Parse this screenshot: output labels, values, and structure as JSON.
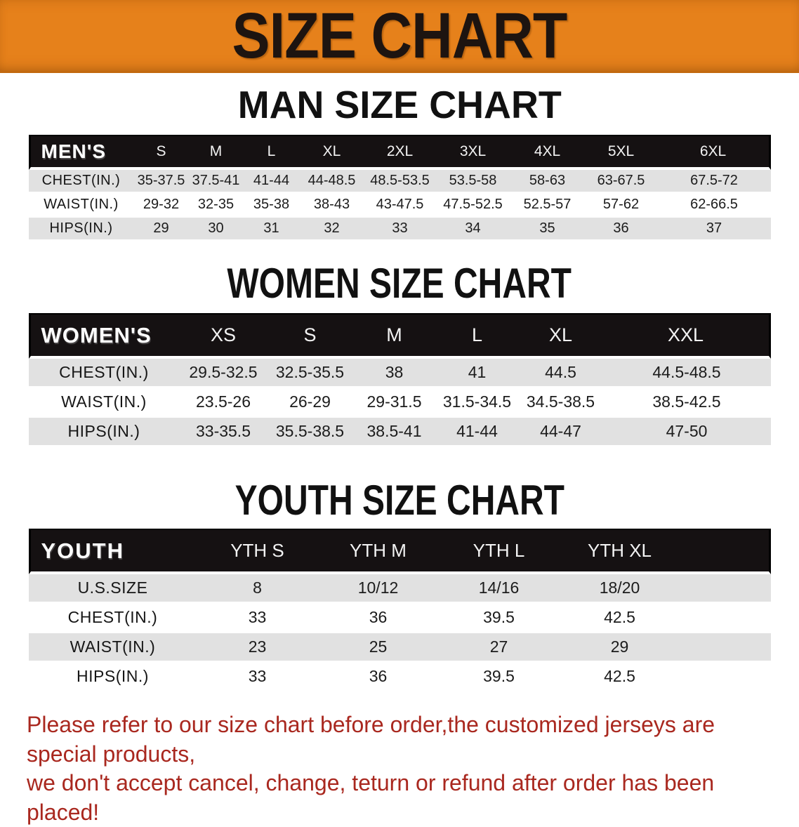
{
  "theme": {
    "banner_bg": "#E6811B",
    "banner_edge": "#C2690F",
    "table_header_bg": "#151112",
    "row_stripe": "#E1E1E1",
    "heading_color": "#111111",
    "disclaimer_red": "#A9281F"
  },
  "banner": {
    "title": "SIZE CHART"
  },
  "sections": [
    {
      "heading": "MAN SIZE CHART",
      "table": {
        "label": "MEN'S",
        "columns": [
          "S",
          "M",
          "L",
          "XL",
          "2XL",
          "3XL",
          "4XL",
          "5XL",
          "6XL"
        ],
        "rows": [
          {
            "label": "CHEST(IN.)",
            "values": [
              "35-37.5",
              "37.5-41",
              "41-44",
              "44-48.5",
              "48.5-53.5",
              "53.5-58",
              "58-63",
              "63-67.5",
              "67.5-72"
            ]
          },
          {
            "label": "WAIST(IN.)",
            "values": [
              "29-32",
              "32-35",
              "35-38",
              "38-43",
              "43-47.5",
              "47.5-52.5",
              "52.5-57",
              "57-62",
              "62-66.5"
            ]
          },
          {
            "label": "HIPS(IN.)",
            "values": [
              "29",
              "30",
              "31",
              "32",
              "33",
              "34",
              "35",
              "36",
              "37"
            ]
          }
        ]
      }
    },
    {
      "heading": "WOMEN SIZE CHART",
      "table": {
        "label": "WOMEN'S",
        "columns": [
          "XS",
          "S",
          "M",
          "L",
          "XL",
          "XXL"
        ],
        "rows": [
          {
            "label": "CHEST(IN.)",
            "values": [
              "29.5-32.5",
              "32.5-35.5",
              "38",
              "41",
              "44.5",
              "44.5-48.5"
            ]
          },
          {
            "label": "WAIST(IN.)",
            "values": [
              "23.5-26",
              "26-29",
              "29-31.5",
              "31.5-34.5",
              "34.5-38.5",
              "38.5-42.5"
            ]
          },
          {
            "label": "HIPS(IN.)",
            "values": [
              "33-35.5",
              "35.5-38.5",
              "38.5-41",
              "41-44",
              "44-47",
              "47-50"
            ]
          }
        ]
      }
    },
    {
      "heading": "YOUTH SIZE CHART",
      "table": {
        "label": "YOUTH",
        "columns": [
          "YTH S",
          "YTH M",
          "YTH L",
          "YTH XL"
        ],
        "rows": [
          {
            "label": "U.S.SIZE",
            "values": [
              "8",
              "10/12",
              "14/16",
              "18/20"
            ]
          },
          {
            "label": "CHEST(IN.)",
            "values": [
              "33",
              "36",
              "39.5",
              "42.5"
            ]
          },
          {
            "label": "WAIST(IN.)",
            "values": [
              "23",
              "25",
              "27",
              "29"
            ]
          },
          {
            "label": "HIPS(IN.)",
            "values": [
              "33",
              "36",
              "39.5",
              "42.5"
            ]
          }
        ]
      }
    }
  ],
  "disclaimer": {
    "lines": [
      "Please refer to our size chart before order,the customized jerseys are special products,",
      "we don't accept cancel, change, teturn or refund after order has been placed!"
    ]
  }
}
